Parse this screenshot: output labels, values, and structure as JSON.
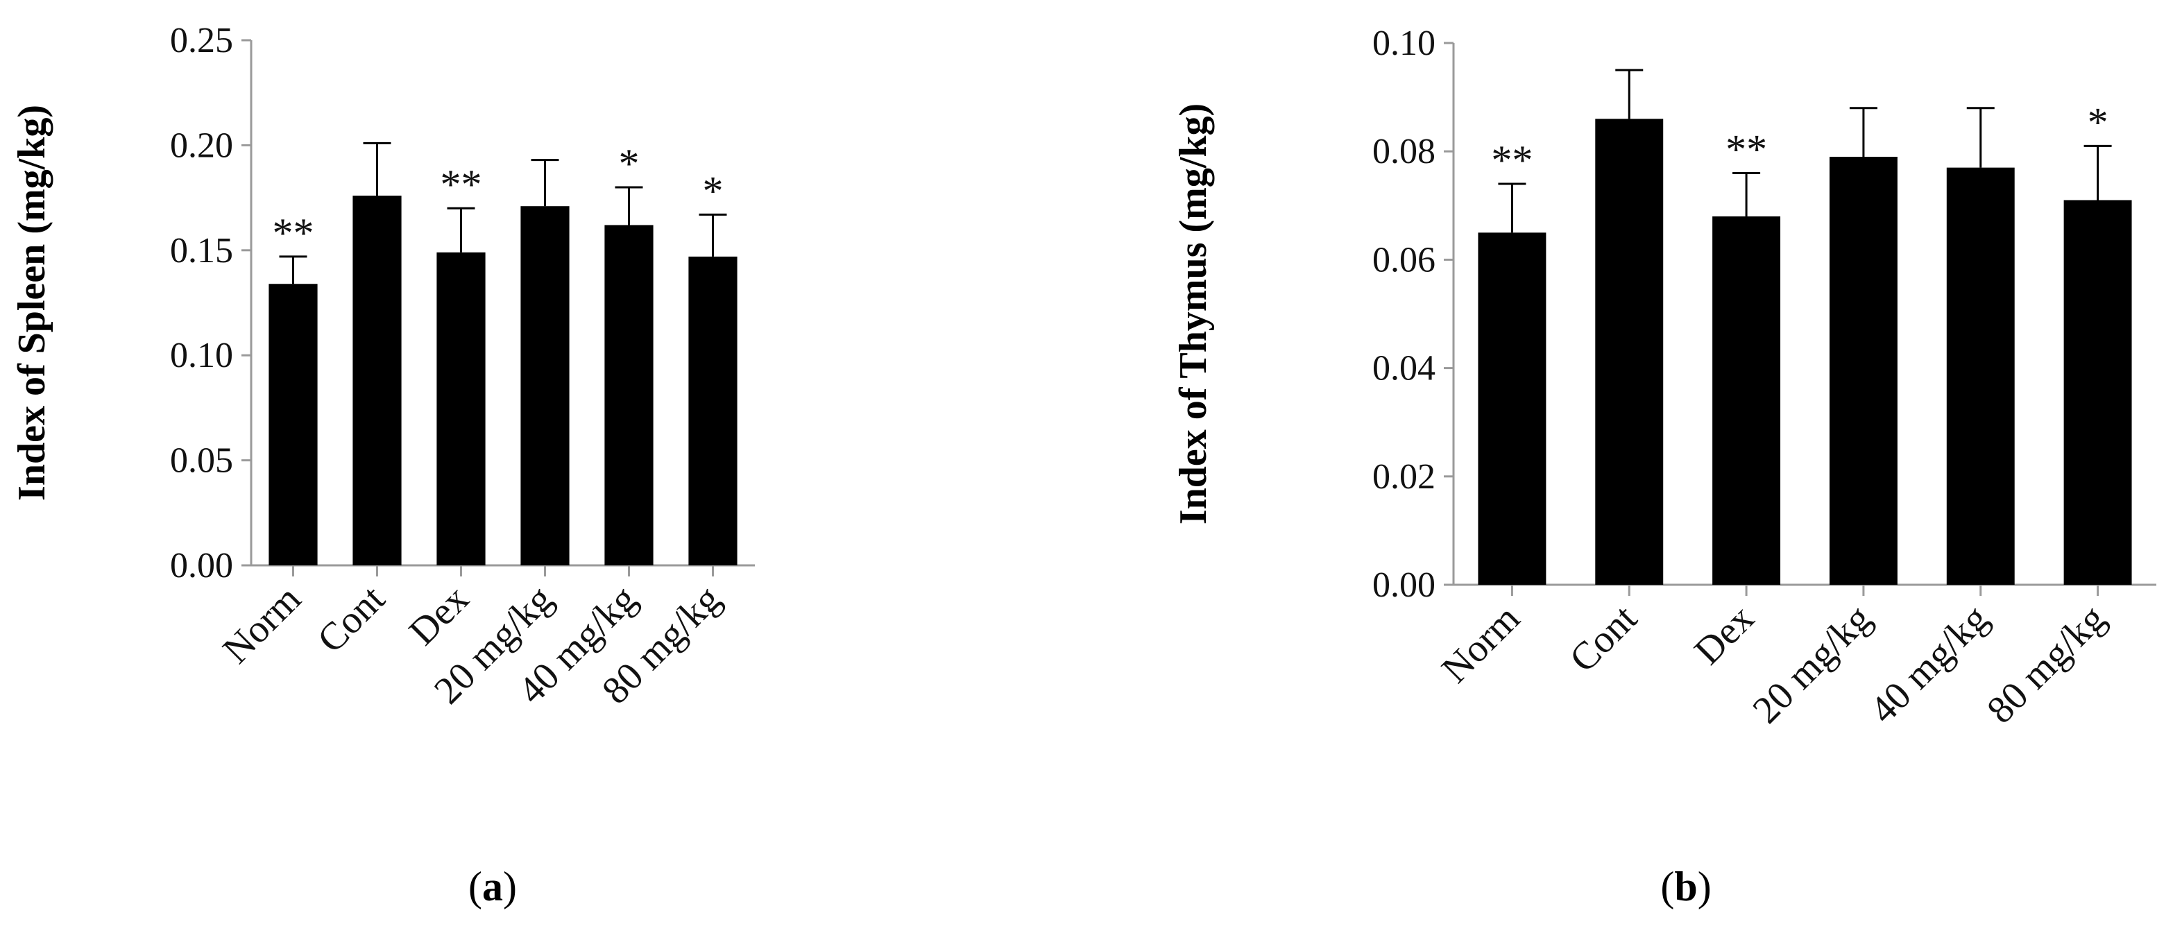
{
  "chart_data": [
    {
      "type": "bar",
      "panel_label": "a",
      "ylabel": "Index of  Spleen (mg/kg)",
      "categories": [
        "Norm",
        "Cont",
        "Dex",
        "20 mg/kg",
        "40 mg/kg",
        "80 mg/kg"
      ],
      "values": [
        0.134,
        0.176,
        0.149,
        0.171,
        0.162,
        0.147
      ],
      "errors": [
        0.013,
        0.025,
        0.021,
        0.022,
        0.018,
        0.02
      ],
      "significance": [
        "**",
        "",
        "**",
        "",
        "*",
        "*"
      ],
      "ylim": [
        0,
        0.25
      ],
      "yticks": [
        "0.00",
        "0.05",
        "0.10",
        "0.15",
        "0.20",
        "0.25"
      ],
      "bar_color": "#000000",
      "grid": false
    },
    {
      "type": "bar",
      "panel_label": "b",
      "ylabel": "Index of  Thymus (mg/kg)",
      "categories": [
        "Norm",
        "Cont",
        "Dex",
        "20 mg/kg",
        "40 mg/kg",
        "80 mg/kg"
      ],
      "values": [
        0.065,
        0.086,
        0.068,
        0.079,
        0.077,
        0.071
      ],
      "errors": [
        0.009,
        0.009,
        0.008,
        0.009,
        0.011,
        0.01
      ],
      "significance": [
        "**",
        "",
        "**",
        "",
        "",
        "*"
      ],
      "ylim": [
        0,
        0.1
      ],
      "yticks": [
        "0.00",
        "0.02",
        "0.04",
        "0.06",
        "0.08",
        "0.10"
      ],
      "bar_color": "#000000",
      "grid": false
    }
  ]
}
